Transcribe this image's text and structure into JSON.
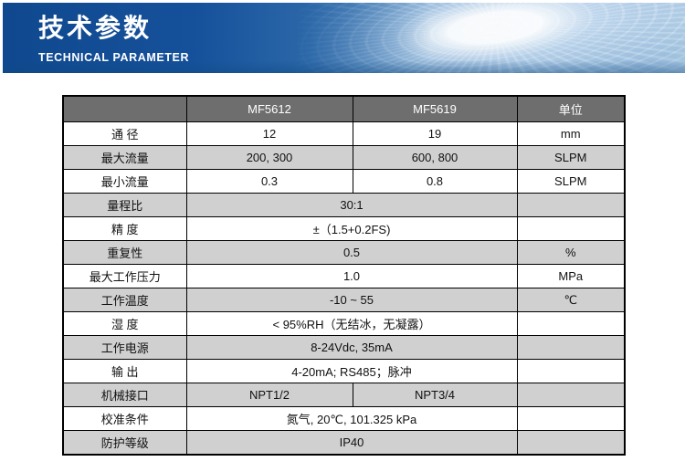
{
  "banner": {
    "title": "技术参数",
    "subtitle": "TECHNICAL PARAMETER",
    "bg_dark": "#15519b",
    "bg_light": "#a3c4e0"
  },
  "table": {
    "colors": {
      "header_bg": "#6e6e6e",
      "header_text": "#ffffff",
      "row_gray": "#d0d0d0",
      "row_white": "#ffffff",
      "border": "#000000"
    },
    "header": {
      "param": "",
      "col1": "MF5612",
      "col2": "MF5619",
      "unit": "单位"
    },
    "rows": [
      {
        "label": "通 径",
        "v1": "12",
        "v2": "19",
        "unit": "mm"
      },
      {
        "label": "最大流量",
        "v1": "200, 300",
        "v2": "600, 800",
        "unit": "SLPM"
      },
      {
        "label": "最小流量",
        "v1": "0.3",
        "v2": "0.8",
        "unit": "SLPM"
      },
      {
        "label": "量程比",
        "value": "30:1",
        "unit": ""
      },
      {
        "label": "精 度",
        "value": "±（1.5+0.2FS)",
        "unit": ""
      },
      {
        "label": "重复性",
        "value": "0.5",
        "unit": "%"
      },
      {
        "label": "最大工作压力",
        "value": "1.0",
        "unit": "MPa"
      },
      {
        "label": "工作温度",
        "value": "-10 ~ 55",
        "unit": "℃"
      },
      {
        "label": "湿 度",
        "value": "< 95%RH（无结冰，无凝露）",
        "unit": ""
      },
      {
        "label": "工作电源",
        "value": "8-24Vdc, 35mA",
        "unit": ""
      },
      {
        "label": "输 出",
        "value": "4-20mA; RS485；脉冲",
        "unit": ""
      },
      {
        "label": "机械接口",
        "v1": "NPT1/2",
        "v2": "NPT3/4",
        "unit": ""
      },
      {
        "label": "校准条件",
        "value": "氮气, 20℃, 101.325 kPa",
        "unit": ""
      },
      {
        "label": "防护等级",
        "value": "IP40",
        "unit": ""
      }
    ]
  }
}
